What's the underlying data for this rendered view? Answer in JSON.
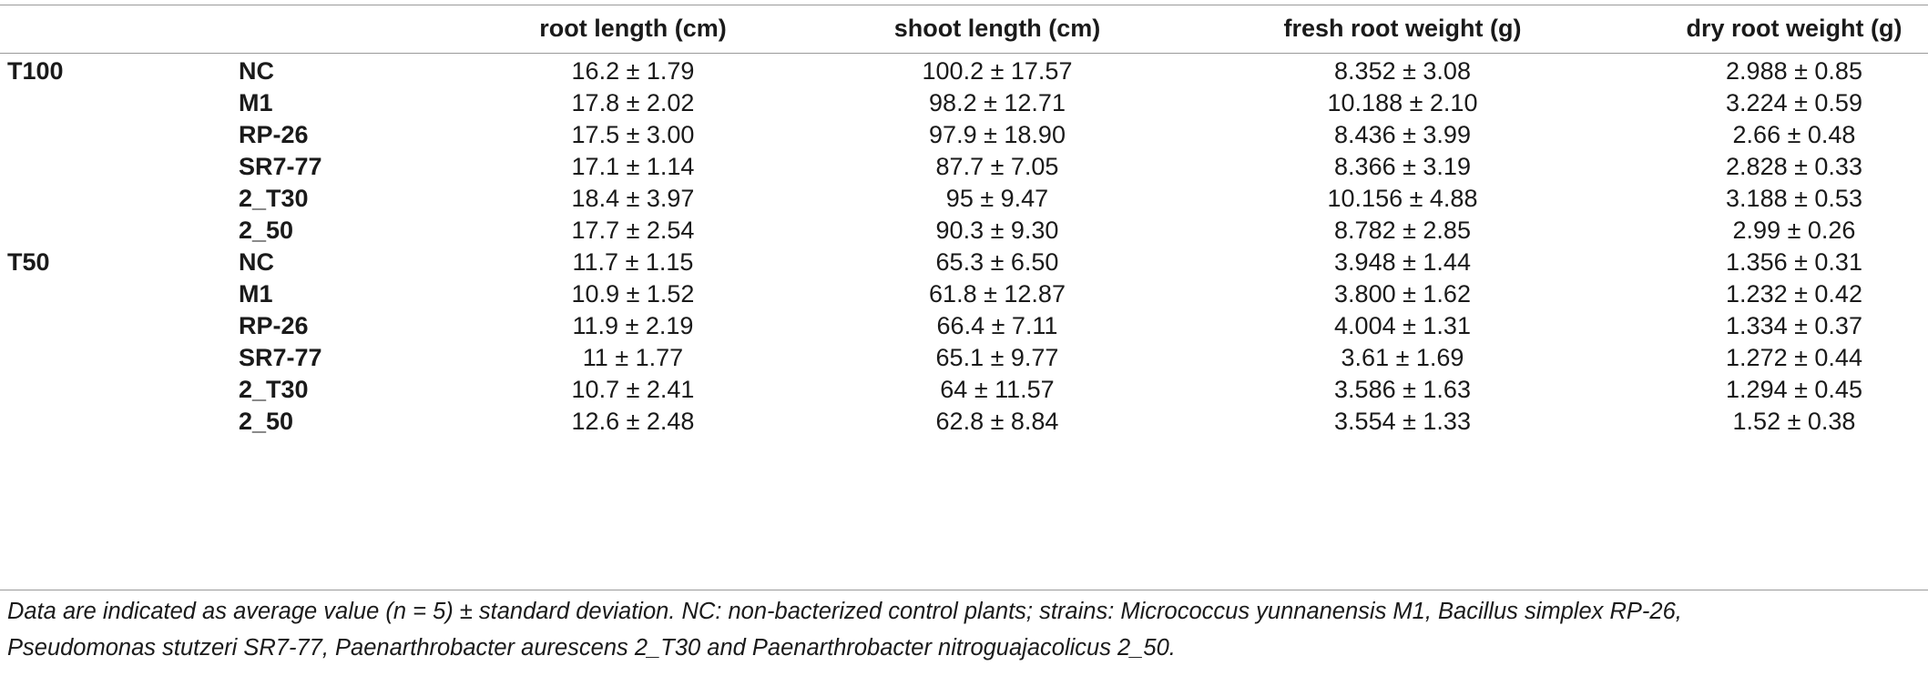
{
  "table": {
    "headers": [
      "",
      "",
      "root length (cm)",
      "shoot length (cm)",
      "fresh root weight (g)",
      "dry root weight (g)"
    ],
    "rows": [
      {
        "group": "T100",
        "strain": "NC",
        "root_length": "16.2 ± 1.79",
        "shoot_length": "100.2 ± 17.57",
        "fresh_root_weight": "8.352 ± 3.08",
        "dry_root_weight": "2.988 ± 0.85"
      },
      {
        "group": "",
        "strain": "M1",
        "root_length": "17.8 ± 2.02",
        "shoot_length": "98.2 ± 12.71",
        "fresh_root_weight": "10.188 ± 2.10",
        "dry_root_weight": "3.224 ± 0.59"
      },
      {
        "group": "",
        "strain": "RP-26",
        "root_length": "17.5 ± 3.00",
        "shoot_length": "97.9 ± 18.90",
        "fresh_root_weight": "8.436 ± 3.99",
        "dry_root_weight": "2.66 ± 0.48"
      },
      {
        "group": "",
        "strain": "SR7-77",
        "root_length": "17.1 ± 1.14",
        "shoot_length": "87.7 ± 7.05",
        "fresh_root_weight": "8.366 ± 3.19",
        "dry_root_weight": "2.828 ± 0.33"
      },
      {
        "group": "",
        "strain": "2_T30",
        "root_length": "18.4 ± 3.97",
        "shoot_length": "95 ± 9.47",
        "fresh_root_weight": "10.156 ± 4.88",
        "dry_root_weight": "3.188 ± 0.53"
      },
      {
        "group": "",
        "strain": "2_50",
        "root_length": "17.7 ± 2.54",
        "shoot_length": "90.3 ± 9.30",
        "fresh_root_weight": "8.782 ± 2.85",
        "dry_root_weight": "2.99 ± 0.26"
      },
      {
        "group": "T50",
        "strain": "NC",
        "root_length": "11.7 ± 1.15",
        "shoot_length": "65.3 ± 6.50",
        "fresh_root_weight": "3.948 ± 1.44",
        "dry_root_weight": "1.356 ± 0.31"
      },
      {
        "group": "",
        "strain": "M1",
        "root_length": "10.9 ± 1.52",
        "shoot_length": "61.8 ± 12.87",
        "fresh_root_weight": "3.800 ± 1.62",
        "dry_root_weight": "1.232 ± 0.42"
      },
      {
        "group": "",
        "strain": "RP-26",
        "root_length": "11.9 ± 2.19",
        "shoot_length": "66.4 ± 7.11",
        "fresh_root_weight": "4.004 ± 1.31",
        "dry_root_weight": "1.334 ± 0.37"
      },
      {
        "group": "",
        "strain": "SR7-77",
        "root_length": "11 ± 1.77",
        "shoot_length": "65.1 ± 9.77",
        "fresh_root_weight": "3.61 ± 1.69",
        "dry_root_weight": "1.272 ± 0.44"
      },
      {
        "group": "",
        "strain": "2_T30",
        "root_length": "10.7 ± 2.41",
        "shoot_length": "64 ± 11.57",
        "fresh_root_weight": "3.586 ± 1.63",
        "dry_root_weight": "1.294 ± 0.45"
      },
      {
        "group": "",
        "strain": "2_50",
        "root_length": "12.6 ± 2.48",
        "shoot_length": "62.8 ± 8.84",
        "fresh_root_weight": "3.554 ± 1.33",
        "dry_root_weight": "1.52 ± 0.38"
      }
    ]
  },
  "footnote": {
    "line1": "Data are indicated as average value (n = 5) ± standard deviation. NC: non-bacterized control plants; strains: Micrococcus yunnanensis M1, Bacillus simplex RP-26,",
    "line2": "Pseudomonas stutzeri SR7-77, Paenarthrobacter aurescens 2_T30 and Paenarthrobacter nitroguajacolicus 2_50."
  },
  "colors": {
    "text": "#1a1a1a",
    "rule": "#9a9a9a",
    "background": "#ffffff"
  }
}
